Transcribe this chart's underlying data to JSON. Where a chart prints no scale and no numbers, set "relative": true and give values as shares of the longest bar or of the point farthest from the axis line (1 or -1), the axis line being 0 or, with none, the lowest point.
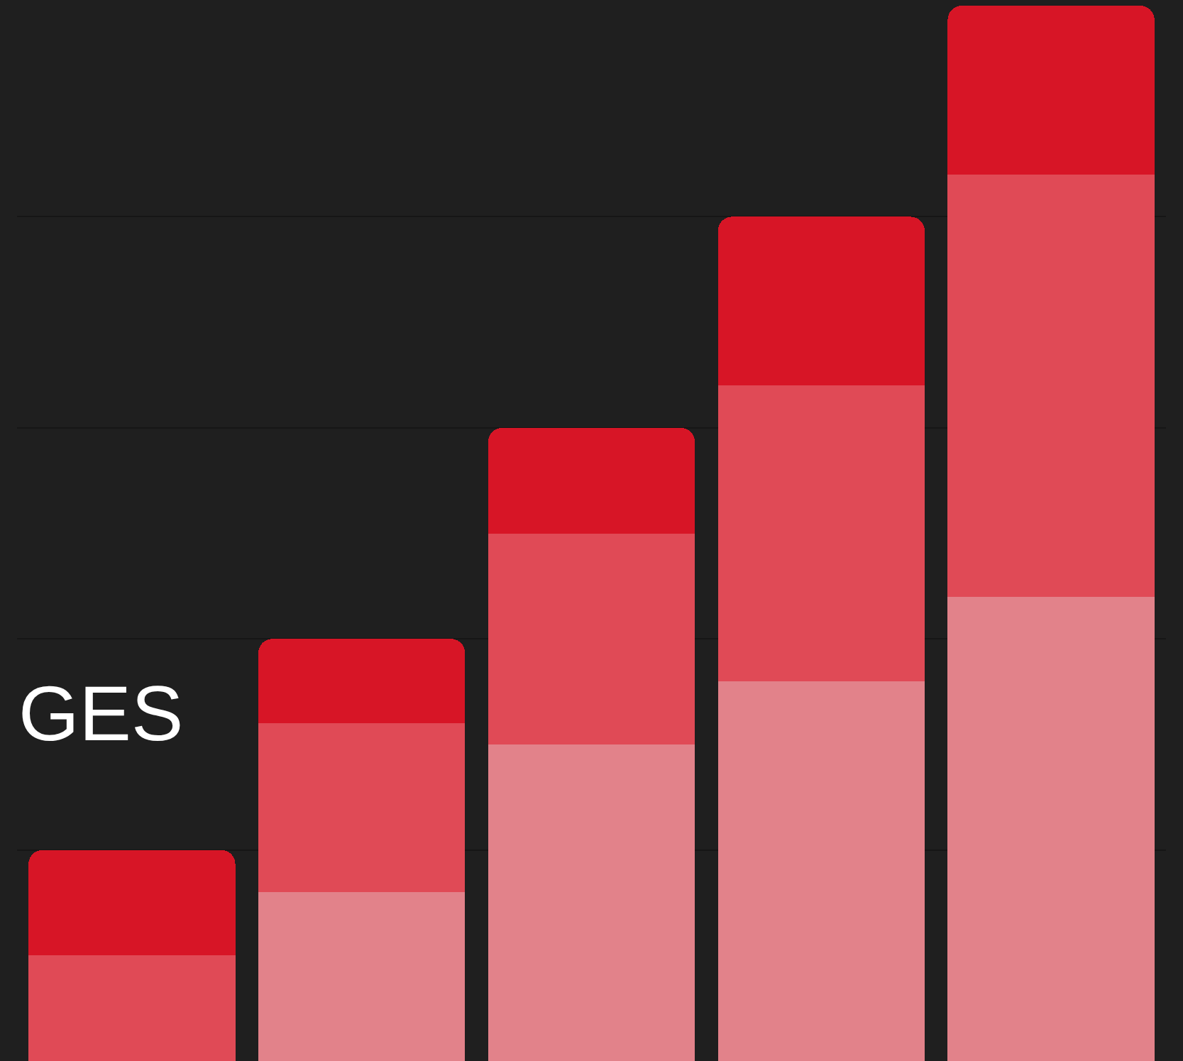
{
  "chart_data": {
    "type": "bar",
    "stacked": true,
    "relative": true,
    "grid": "y",
    "categories": [
      null,
      null,
      null,
      null,
      null
    ],
    "series": [
      {
        "color": "#e2828a",
        "values": [
          0,
          0.16,
          0.3,
          0.36,
          0.44
        ]
      },
      {
        "color": "#e04a56",
        "values": [
          0.1,
          0.16,
          0.2,
          0.28,
          0.4
        ]
      },
      {
        "color": "#d71526",
        "values": [
          0.1,
          0.08,
          0.1,
          0.16,
          0.16
        ]
      }
    ],
    "annotations": [
      "GES"
    ]
  }
}
